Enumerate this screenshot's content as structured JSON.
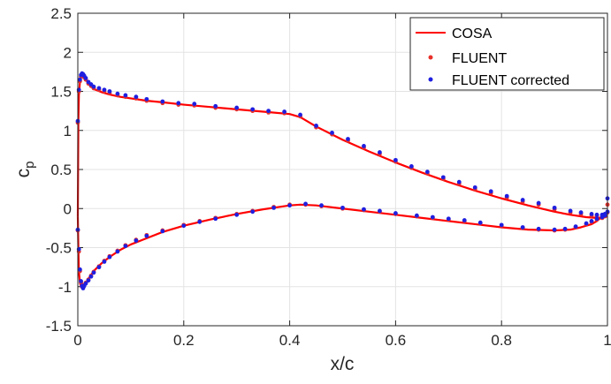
{
  "chart_data": {
    "type": "line",
    "title": "",
    "xlabel": "x/c",
    "ylabel": "c",
    "ylabel_subscript": "p",
    "xlim": [
      0,
      1
    ],
    "ylim": [
      -1.5,
      2.5
    ],
    "xticks": [
      0,
      0.2,
      0.4,
      0.6,
      0.8,
      1
    ],
    "xtick_labels": [
      "0",
      "0.2",
      "0.4",
      "0.6",
      "0.8",
      "1"
    ],
    "yticks": [
      -1.5,
      -1,
      -0.5,
      0,
      0.5,
      1,
      1.5,
      2,
      2.5
    ],
    "ytick_labels": [
      "-1.5",
      "-1",
      "-0.5",
      "0",
      "0.5",
      "1",
      "1.5",
      "2",
      "2.5"
    ],
    "grid": true,
    "legend_position": "top-right",
    "series": [
      {
        "name": "COSA",
        "style": "solid-line",
        "color": "#ff0000",
        "upper": {
          "x": [
            0.0,
            0.001,
            0.002,
            0.004,
            0.006,
            0.009,
            0.013,
            0.02,
            0.03,
            0.045,
            0.06,
            0.08,
            0.1,
            0.13,
            0.16,
            0.2,
            0.25,
            0.3,
            0.35,
            0.4,
            0.42,
            0.45,
            0.5,
            0.55,
            0.6,
            0.65,
            0.7,
            0.75,
            0.8,
            0.85,
            0.9,
            0.93,
            0.96,
            0.98,
            0.99,
            1.0
          ],
          "y": [
            -0.1,
            1.1,
            1.45,
            1.62,
            1.7,
            1.7,
            1.67,
            1.6,
            1.53,
            1.49,
            1.46,
            1.43,
            1.41,
            1.38,
            1.36,
            1.33,
            1.3,
            1.27,
            1.24,
            1.21,
            1.17,
            1.05,
            0.88,
            0.73,
            0.59,
            0.46,
            0.34,
            0.23,
            0.13,
            0.04,
            -0.04,
            -0.08,
            -0.11,
            -0.12,
            -0.12,
            -0.1
          ]
        },
        "lower": {
          "x": [
            0.0,
            0.001,
            0.002,
            0.004,
            0.006,
            0.009,
            0.013,
            0.02,
            0.03,
            0.045,
            0.06,
            0.08,
            0.1,
            0.13,
            0.16,
            0.2,
            0.25,
            0.3,
            0.35,
            0.4,
            0.42,
            0.45,
            0.5,
            0.55,
            0.6,
            0.65,
            0.7,
            0.75,
            0.8,
            0.85,
            0.9,
            0.93,
            0.95,
            0.97,
            0.98,
            0.99,
            1.0
          ],
          "y": [
            -0.1,
            -0.5,
            -0.8,
            -0.95,
            -1.0,
            -1.0,
            -0.97,
            -0.9,
            -0.8,
            -0.7,
            -0.62,
            -0.53,
            -0.46,
            -0.38,
            -0.3,
            -0.22,
            -0.14,
            -0.07,
            -0.01,
            0.04,
            0.05,
            0.04,
            0.0,
            -0.04,
            -0.08,
            -0.12,
            -0.16,
            -0.2,
            -0.24,
            -0.27,
            -0.28,
            -0.27,
            -0.24,
            -0.2,
            -0.16,
            -0.1,
            -0.1
          ]
        }
      },
      {
        "name": "FLUENT",
        "style": "dot-markers",
        "color": "#e8302a",
        "upper": {
          "x": [
            0.0,
            0.002,
            0.004,
            0.006,
            0.008,
            0.01,
            0.012,
            0.015,
            0.02,
            0.025,
            0.03,
            0.04,
            0.05,
            0.06,
            0.075,
            0.09,
            0.11,
            0.13,
            0.16,
            0.19,
            0.22,
            0.26,
            0.3,
            0.33,
            0.36,
            0.39,
            0.42,
            0.45,
            0.48,
            0.51,
            0.54,
            0.57,
            0.6,
            0.63,
            0.66,
            0.69,
            0.72,
            0.75,
            0.78,
            0.81,
            0.84,
            0.87,
            0.9,
            0.93,
            0.95,
            0.97,
            0.98,
            0.99,
            0.995,
            1.0
          ],
          "y": [
            1.1,
            1.5,
            1.63,
            1.69,
            1.71,
            1.7,
            1.68,
            1.65,
            1.6,
            1.57,
            1.54,
            1.52,
            1.5,
            1.48,
            1.45,
            1.43,
            1.41,
            1.38,
            1.35,
            1.33,
            1.32,
            1.29,
            1.27,
            1.25,
            1.23,
            1.22,
            1.18,
            1.04,
            0.95,
            0.87,
            0.78,
            0.7,
            0.6,
            0.52,
            0.45,
            0.38,
            0.32,
            0.25,
            0.2,
            0.14,
            0.09,
            0.05,
            -0.01,
            -0.05,
            -0.07,
            -0.09,
            -0.1,
            -0.1,
            -0.09,
            0.05
          ]
        },
        "lower": {
          "x": [
            0.0,
            0.002,
            0.004,
            0.006,
            0.008,
            0.01,
            0.012,
            0.015,
            0.02,
            0.025,
            0.03,
            0.04,
            0.05,
            0.06,
            0.075,
            0.09,
            0.11,
            0.13,
            0.16,
            0.2,
            0.23,
            0.26,
            0.3,
            0.33,
            0.37,
            0.4,
            0.43,
            0.46,
            0.5,
            0.54,
            0.57,
            0.6,
            0.64,
            0.67,
            0.7,
            0.73,
            0.76,
            0.8,
            0.84,
            0.87,
            0.9,
            0.92,
            0.94,
            0.96,
            0.97,
            0.98,
            0.99,
            0.995,
            1.0
          ],
          "y": [
            -0.28,
            -0.55,
            -0.8,
            -0.95,
            -1.0,
            -1.01,
            -0.98,
            -0.95,
            -0.91,
            -0.86,
            -0.81,
            -0.74,
            -0.67,
            -0.61,
            -0.54,
            -0.47,
            -0.4,
            -0.34,
            -0.28,
            -0.21,
            -0.16,
            -0.12,
            -0.07,
            -0.03,
            0.02,
            0.05,
            0.05,
            0.03,
            0.0,
            -0.02,
            -0.04,
            -0.07,
            -0.1,
            -0.12,
            -0.14,
            -0.16,
            -0.19,
            -0.22,
            -0.25,
            -0.27,
            -0.28,
            -0.27,
            -0.24,
            -0.2,
            -0.17,
            -0.14,
            -0.12,
            -0.1,
            -0.05
          ]
        }
      },
      {
        "name": "FLUENT corrected",
        "style": "dot-markers",
        "color": "#1f1fe0",
        "upper": {
          "x": [
            0.0,
            0.002,
            0.004,
            0.006,
            0.008,
            0.01,
            0.012,
            0.015,
            0.02,
            0.025,
            0.03,
            0.04,
            0.05,
            0.06,
            0.075,
            0.09,
            0.11,
            0.13,
            0.16,
            0.19,
            0.22,
            0.26,
            0.3,
            0.33,
            0.36,
            0.39,
            0.42,
            0.45,
            0.48,
            0.51,
            0.54,
            0.57,
            0.6,
            0.63,
            0.66,
            0.69,
            0.72,
            0.75,
            0.78,
            0.81,
            0.84,
            0.87,
            0.9,
            0.93,
            0.95,
            0.97,
            0.98,
            0.99,
            0.995,
            1.0
          ],
          "y": [
            1.12,
            1.52,
            1.65,
            1.71,
            1.73,
            1.72,
            1.7,
            1.67,
            1.62,
            1.59,
            1.56,
            1.54,
            1.52,
            1.5,
            1.47,
            1.45,
            1.43,
            1.4,
            1.37,
            1.35,
            1.34,
            1.31,
            1.29,
            1.27,
            1.25,
            1.24,
            1.2,
            1.06,
            0.97,
            0.89,
            0.8,
            0.72,
            0.62,
            0.54,
            0.47,
            0.4,
            0.34,
            0.27,
            0.22,
            0.16,
            0.11,
            0.07,
            0.01,
            -0.03,
            -0.05,
            -0.07,
            -0.08,
            -0.08,
            -0.07,
            0.13
          ]
        },
        "lower": {
          "x": [
            0.0,
            0.002,
            0.004,
            0.006,
            0.008,
            0.01,
            0.012,
            0.015,
            0.02,
            0.025,
            0.03,
            0.04,
            0.05,
            0.06,
            0.075,
            0.09,
            0.11,
            0.13,
            0.16,
            0.2,
            0.23,
            0.26,
            0.3,
            0.33,
            0.37,
            0.4,
            0.43,
            0.46,
            0.5,
            0.54,
            0.57,
            0.6,
            0.64,
            0.67,
            0.7,
            0.73,
            0.76,
            0.8,
            0.84,
            0.87,
            0.9,
            0.92,
            0.94,
            0.96,
            0.97,
            0.98,
            0.99,
            0.995,
            1.0
          ],
          "y": [
            -0.27,
            -0.52,
            -0.78,
            -0.93,
            -0.99,
            -1.02,
            -0.99,
            -0.96,
            -0.92,
            -0.87,
            -0.82,
            -0.75,
            -0.68,
            -0.62,
            -0.55,
            -0.48,
            -0.41,
            -0.35,
            -0.29,
            -0.22,
            -0.17,
            -0.13,
            -0.08,
            -0.04,
            0.01,
            0.04,
            0.06,
            0.04,
            0.01,
            -0.01,
            -0.03,
            -0.06,
            -0.09,
            -0.11,
            -0.13,
            -0.15,
            -0.18,
            -0.21,
            -0.24,
            -0.26,
            -0.27,
            -0.26,
            -0.23,
            -0.19,
            -0.16,
            -0.13,
            -0.11,
            -0.09,
            -0.04
          ]
        }
      }
    ]
  }
}
